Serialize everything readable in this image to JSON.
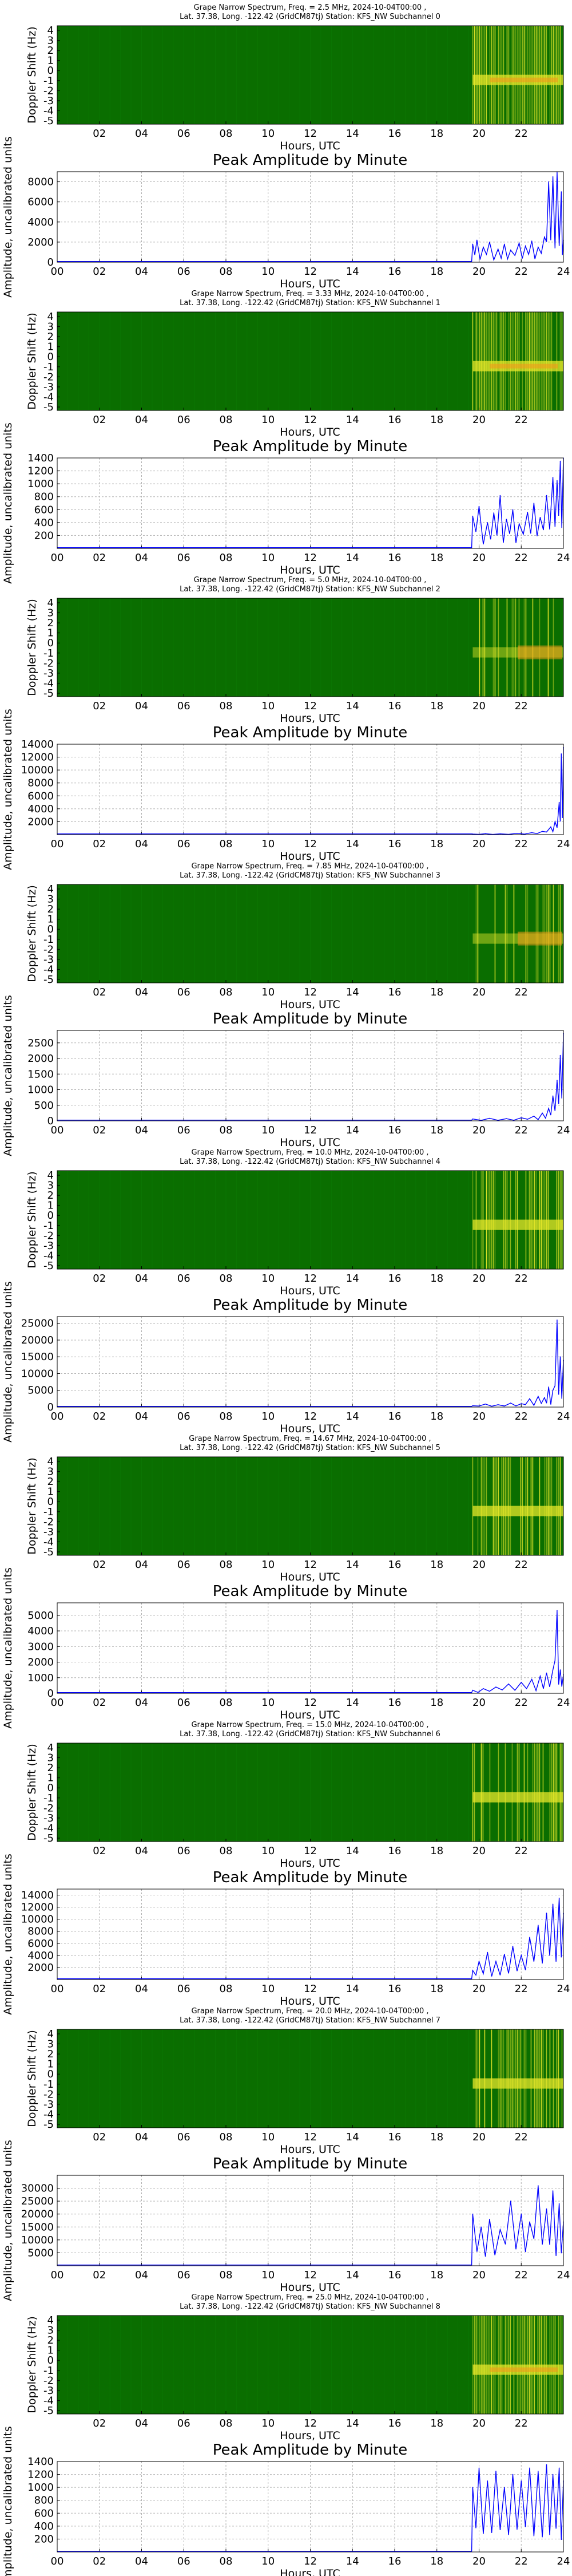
{
  "figure": {
    "title_prefix": "Grape Narrow Spectrum, Freq. = ",
    "title_date": "2024-10-04T00:00 ,",
    "title_loc": "Lat.  37.38, Long. -122.42 (GridCM87tj) Station: KFS_NW Subchannel ",
    "spectrogram_ylabel": "Doppler Shift (Hz)",
    "amplitude_title": "Peak Amplitude by Minute",
    "amplitude_ylabel": "Amplitude, uncalibrated units",
    "xlabel": "Hours, UTC",
    "spectrogram_xticks": [
      "02",
      "04",
      "06",
      "08",
      "10",
      "12",
      "14",
      "16",
      "18",
      "20",
      "22"
    ],
    "amplitude_xticks": [
      "00",
      "02",
      "04",
      "06",
      "08",
      "10",
      "12",
      "14",
      "16",
      "18",
      "20",
      "22",
      "24"
    ],
    "doppler_ticks": [
      "4",
      "3",
      "2",
      "1",
      "0",
      "-1",
      "-2",
      "-3",
      "-4",
      "-5"
    ],
    "colors": {
      "spectrogram_bg": "#0a6e00",
      "spectrogram_signal": "#e8e82a",
      "spectrogram_hot": "#f29a1a",
      "amplitude_line": "#0000ff",
      "grid": "#b0b0b0"
    }
  },
  "chart_data": [
    {
      "type": "heatmap",
      "subchannel": "0",
      "freq": "2.5 MHz",
      "xlim": [
        0,
        24
      ],
      "ylim": [
        -5,
        5
      ],
      "signal_start_hour": 19.7,
      "intensity": "high"
    },
    {
      "type": "line",
      "subchannel": "0",
      "xlim": [
        0,
        24
      ],
      "ylim": [
        0,
        9000
      ],
      "yticks": [
        0,
        2000,
        4000,
        6000,
        8000
      ],
      "grid": true,
      "x": [
        19.7,
        19.9,
        20.2,
        20.5,
        20.9,
        21.2,
        21.5,
        21.9,
        22.2,
        22.5,
        22.8,
        23.1,
        23.3,
        23.5,
        23.7,
        23.9,
        24.0
      ],
      "y": [
        1800,
        2200,
        1500,
        2000,
        1300,
        1800,
        1200,
        1900,
        1600,
        2100,
        1500,
        2500,
        8000,
        8500,
        9000,
        7000,
        2200
      ]
    },
    {
      "type": "heatmap",
      "subchannel": "1",
      "freq": "3.33 MHz",
      "xlim": [
        0,
        24
      ],
      "ylim": [
        -5,
        5
      ],
      "signal_start_hour": 19.7,
      "intensity": "high"
    },
    {
      "type": "line",
      "subchannel": "1",
      "xlim": [
        0,
        24
      ],
      "ylim": [
        0,
        1400
      ],
      "yticks": [
        200,
        400,
        600,
        800,
        1000,
        1200,
        1400
      ],
      "grid": true,
      "x": [
        19.7,
        20.0,
        20.4,
        20.7,
        21.0,
        21.3,
        21.6,
        21.9,
        22.3,
        22.6,
        22.9,
        23.2,
        23.5,
        23.7,
        23.85,
        24.0
      ],
      "y": [
        500,
        650,
        400,
        550,
        820,
        450,
        600,
        380,
        560,
        700,
        480,
        820,
        1100,
        1050,
        1350,
        1400
      ]
    },
    {
      "type": "heatmap",
      "subchannel": "2",
      "freq": "5.0 MHz",
      "xlim": [
        0,
        24
      ],
      "ylim": [
        -5,
        5
      ],
      "signal_start_hour": 19.7,
      "intensity": "low"
    },
    {
      "type": "line",
      "subchannel": "2",
      "xlim": [
        0,
        24
      ],
      "ylim": [
        0,
        14000
      ],
      "yticks": [
        2000,
        4000,
        6000,
        8000,
        10000,
        12000,
        14000
      ],
      "grid": true,
      "x": [
        19.7,
        20.3,
        21.0,
        21.8,
        22.5,
        23.0,
        23.4,
        23.6,
        23.8,
        23.9,
        24.0
      ],
      "y": [
        100,
        150,
        120,
        200,
        300,
        500,
        1200,
        2000,
        5000,
        12500,
        13500
      ]
    },
    {
      "type": "heatmap",
      "subchannel": "3",
      "freq": "7.85 MHz",
      "xlim": [
        0,
        24
      ],
      "ylim": [
        -5,
        5
      ],
      "signal_start_hour": 19.7,
      "intensity": "low"
    },
    {
      "type": "line",
      "subchannel": "3",
      "xlim": [
        0,
        24
      ],
      "ylim": [
        0,
        2900
      ],
      "yticks": [
        0,
        500,
        1000,
        1500,
        2000,
        2500
      ],
      "grid": true,
      "x": [
        19.7,
        20.5,
        21.3,
        22.0,
        22.6,
        23.0,
        23.3,
        23.5,
        23.7,
        23.85,
        24.0
      ],
      "y": [
        60,
        80,
        70,
        100,
        150,
        250,
        400,
        800,
        1300,
        2100,
        2800
      ]
    },
    {
      "type": "heatmap",
      "subchannel": "4",
      "freq": "10.0 MHz",
      "xlim": [
        0,
        24
      ],
      "ylim": [
        -5,
        5
      ],
      "signal_start_hour": 19.7,
      "intensity": "medium"
    },
    {
      "type": "line",
      "subchannel": "4",
      "xlim": [
        0,
        24
      ],
      "ylim": [
        0,
        27000
      ],
      "yticks": [
        0,
        5000,
        10000,
        15000,
        20000,
        25000
      ],
      "grid": true,
      "x": [
        19.7,
        20.3,
        20.9,
        21.5,
        22.0,
        22.4,
        22.8,
        23.1,
        23.3,
        23.5,
        23.7,
        23.85,
        24.0
      ],
      "y": [
        400,
        900,
        700,
        1200,
        1000,
        2500,
        3200,
        2800,
        6000,
        5000,
        26000,
        15000,
        14000
      ]
    },
    {
      "type": "heatmap",
      "subchannel": "5",
      "freq": "14.67 MHz",
      "xlim": [
        0,
        24
      ],
      "ylim": [
        -5,
        5
      ],
      "signal_start_hour": 19.7,
      "intensity": "medium"
    },
    {
      "type": "line",
      "subchannel": "5",
      "xlim": [
        0,
        24
      ],
      "ylim": [
        0,
        5800
      ],
      "yticks": [
        0,
        1000,
        2000,
        3000,
        4000,
        5000
      ],
      "grid": true,
      "x": [
        19.7,
        20.2,
        20.8,
        21.4,
        22.0,
        22.5,
        22.9,
        23.2,
        23.5,
        23.7,
        23.85,
        24.0
      ],
      "y": [
        200,
        300,
        400,
        600,
        700,
        900,
        1100,
        1300,
        1500,
        5300,
        1500,
        1200
      ]
    },
    {
      "type": "heatmap",
      "subchannel": "6",
      "freq": "15.0 MHz",
      "xlim": [
        0,
        24
      ],
      "ylim": [
        -5,
        5
      ],
      "signal_start_hour": 19.7,
      "intensity": "medium"
    },
    {
      "type": "line",
      "subchannel": "6",
      "xlim": [
        0,
        24
      ],
      "ylim": [
        0,
        15000
      ],
      "yticks": [
        2000,
        4000,
        6000,
        8000,
        10000,
        12000,
        14000
      ],
      "grid": true,
      "x": [
        19.7,
        20.0,
        20.4,
        20.8,
        21.2,
        21.6,
        22.0,
        22.4,
        22.8,
        23.2,
        23.5,
        23.8,
        24.0
      ],
      "y": [
        1500,
        3000,
        4500,
        3000,
        4200,
        5500,
        4000,
        7000,
        9000,
        11000,
        12500,
        13500,
        11000
      ]
    },
    {
      "type": "heatmap",
      "subchannel": "7",
      "freq": "20.0 MHz",
      "xlim": [
        0,
        24
      ],
      "ylim": [
        -5,
        5
      ],
      "signal_start_hour": 19.7,
      "intensity": "medium"
    },
    {
      "type": "line",
      "subchannel": "7",
      "xlim": [
        0,
        24
      ],
      "ylim": [
        0,
        35000
      ],
      "yticks": [
        5000,
        10000,
        15000,
        20000,
        25000,
        30000
      ],
      "grid": true,
      "x": [
        19.7,
        20.1,
        20.5,
        21.0,
        21.5,
        22.0,
        22.4,
        22.8,
        23.2,
        23.5,
        23.8,
        24.0
      ],
      "y": [
        20000,
        15000,
        18000,
        14000,
        25000,
        20000,
        17000,
        31000,
        22000,
        29000,
        24000,
        17000
      ]
    },
    {
      "type": "heatmap",
      "subchannel": "8",
      "freq": "25.0 MHz",
      "xlim": [
        0,
        24
      ],
      "ylim": [
        -5,
        5
      ],
      "signal_start_hour": 19.7,
      "intensity": "high"
    },
    {
      "type": "line",
      "subchannel": "8",
      "xlim": [
        0,
        24
      ],
      "ylim": [
        0,
        1400
      ],
      "yticks": [
        200,
        400,
        600,
        800,
        1000,
        1200,
        1400
      ],
      "grid": true,
      "x": [
        19.7,
        20.0,
        20.4,
        20.8,
        21.2,
        21.6,
        22.0,
        22.4,
        22.8,
        23.2,
        23.5,
        23.8,
        24.0
      ],
      "y": [
        1000,
        1300,
        1100,
        1250,
        1000,
        1200,
        1100,
        1300,
        1250,
        1350,
        1200,
        1300,
        1100
      ]
    }
  ]
}
